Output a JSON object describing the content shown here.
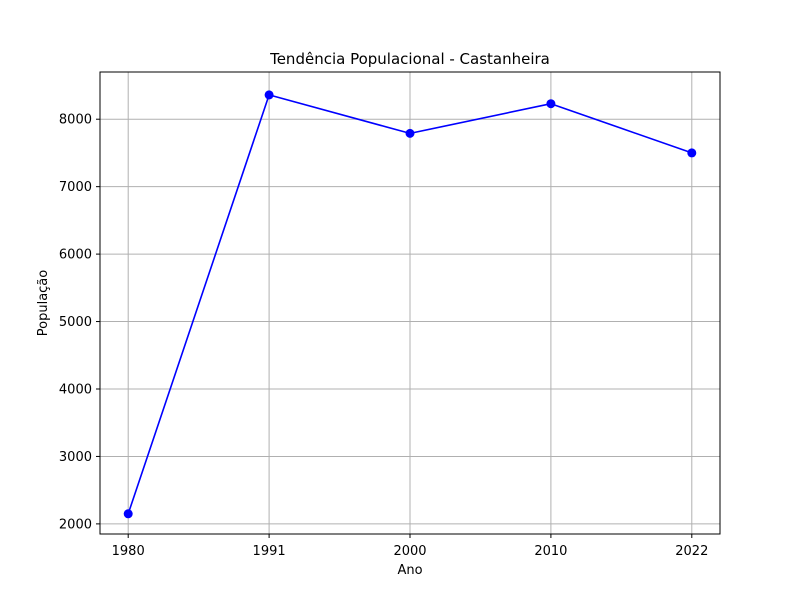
{
  "chart_data": {
    "type": "line",
    "title": "Tendência Populacional - Castanheira",
    "xlabel": "Ano",
    "ylabel": "População",
    "categories": [
      "1980",
      "1991",
      "2000",
      "2010",
      "2022"
    ],
    "ylim": [
      1850,
      8700
    ],
    "yticks": [
      "2000",
      "3000",
      "4000",
      "5000",
      "6000",
      "7000",
      "8000"
    ],
    "grid": true,
    "series": [
      {
        "values": [
          2150,
          8360,
          7790,
          8230,
          7500
        ],
        "color": "#0000ff",
        "marker": "circle"
      }
    ]
  }
}
